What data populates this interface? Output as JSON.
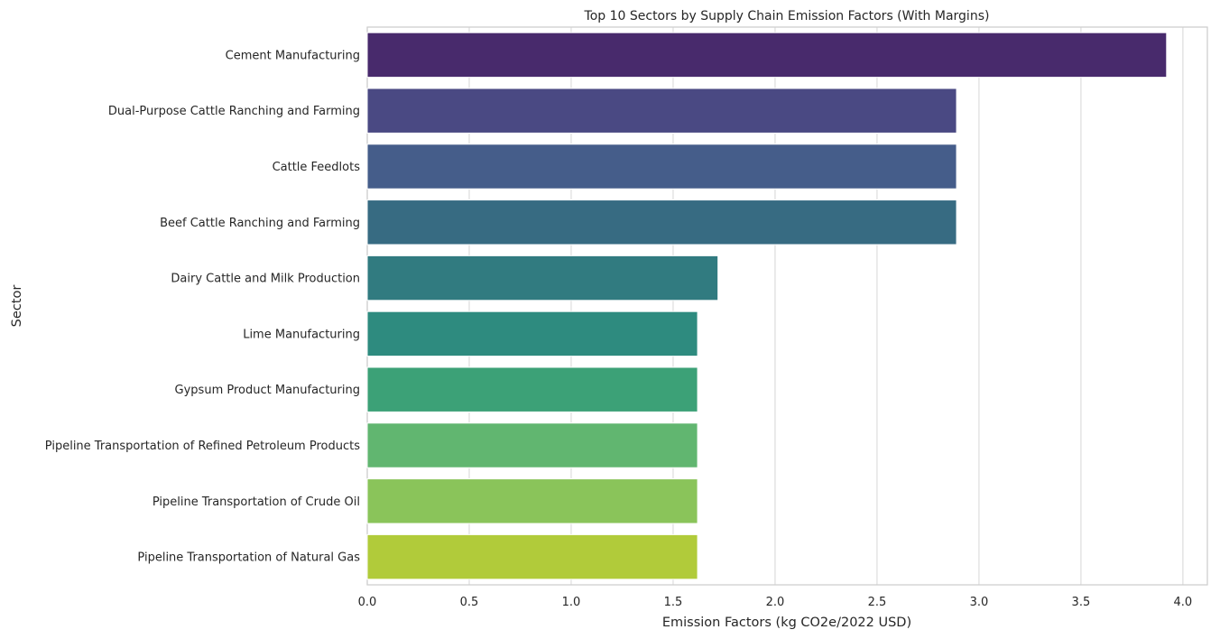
{
  "chart_data": {
    "type": "bar",
    "orientation": "horizontal",
    "title": "Top 10 Sectors by Supply Chain Emission Factors (With Margins)",
    "xlabel": "Emission Factors (kg CO2e/2022 USD)",
    "ylabel": "Sector",
    "xlim": [
      0,
      4.12
    ],
    "xticks": [
      "0.0",
      "0.5",
      "1.0",
      "1.5",
      "2.0",
      "2.5",
      "3.0",
      "3.5",
      "4.0"
    ],
    "grid": true,
    "categories": [
      "Cement Manufacturing",
      "Dual-Purpose Cattle Ranching and Farming",
      "Cattle Feedlots",
      "Beef Cattle Ranching and Farming",
      "Dairy Cattle and Milk Production",
      "Lime Manufacturing",
      "Gypsum Product Manufacturing",
      "Pipeline Transportation of Refined Petroleum Products",
      "Pipeline Transportation of Crude Oil",
      "Pipeline Transportation of Natural Gas"
    ],
    "values": [
      3.92,
      2.89,
      2.89,
      2.89,
      1.72,
      1.62,
      1.62,
      1.62,
      1.62,
      1.62
    ],
    "colors": [
      "#482a6c",
      "#4a4983",
      "#455d8a",
      "#376b82",
      "#317b80",
      "#2e8b7f",
      "#3ca177",
      "#61b670",
      "#8ac45a",
      "#b1cb3a"
    ]
  }
}
